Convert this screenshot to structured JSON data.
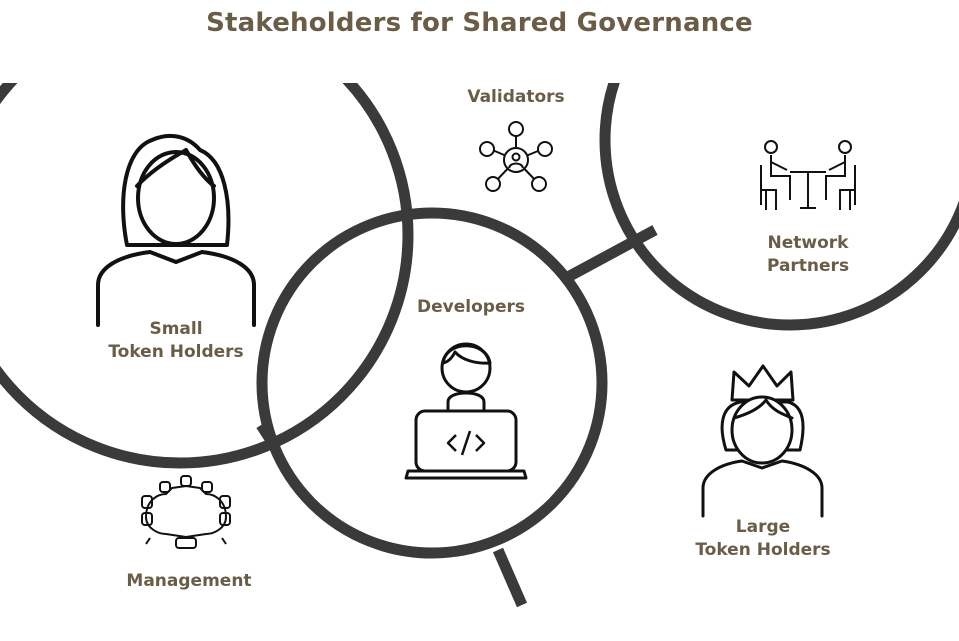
{
  "title": "Stakeholders for Shared Governance",
  "colors": {
    "label": "#6b5d45",
    "stroke": "#3a3a3a"
  },
  "stakeholders": {
    "validators": {
      "label": "Validators",
      "icon": "network-node-icon"
    },
    "network_partners": {
      "lines": [
        "Network",
        "Partners"
      ],
      "icon": "meeting-icon"
    },
    "small_holders": {
      "lines": [
        "Small",
        "Token Holders"
      ],
      "icon": "woman-icon"
    },
    "developers": {
      "label": "Developers",
      "icon": "developer-laptop-icon"
    },
    "large_holders": {
      "lines": [
        "Large",
        "Token Holders"
      ],
      "icon": "crowned-woman-icon"
    },
    "management": {
      "label": "Management",
      "icon": "conference-table-icon"
    }
  }
}
